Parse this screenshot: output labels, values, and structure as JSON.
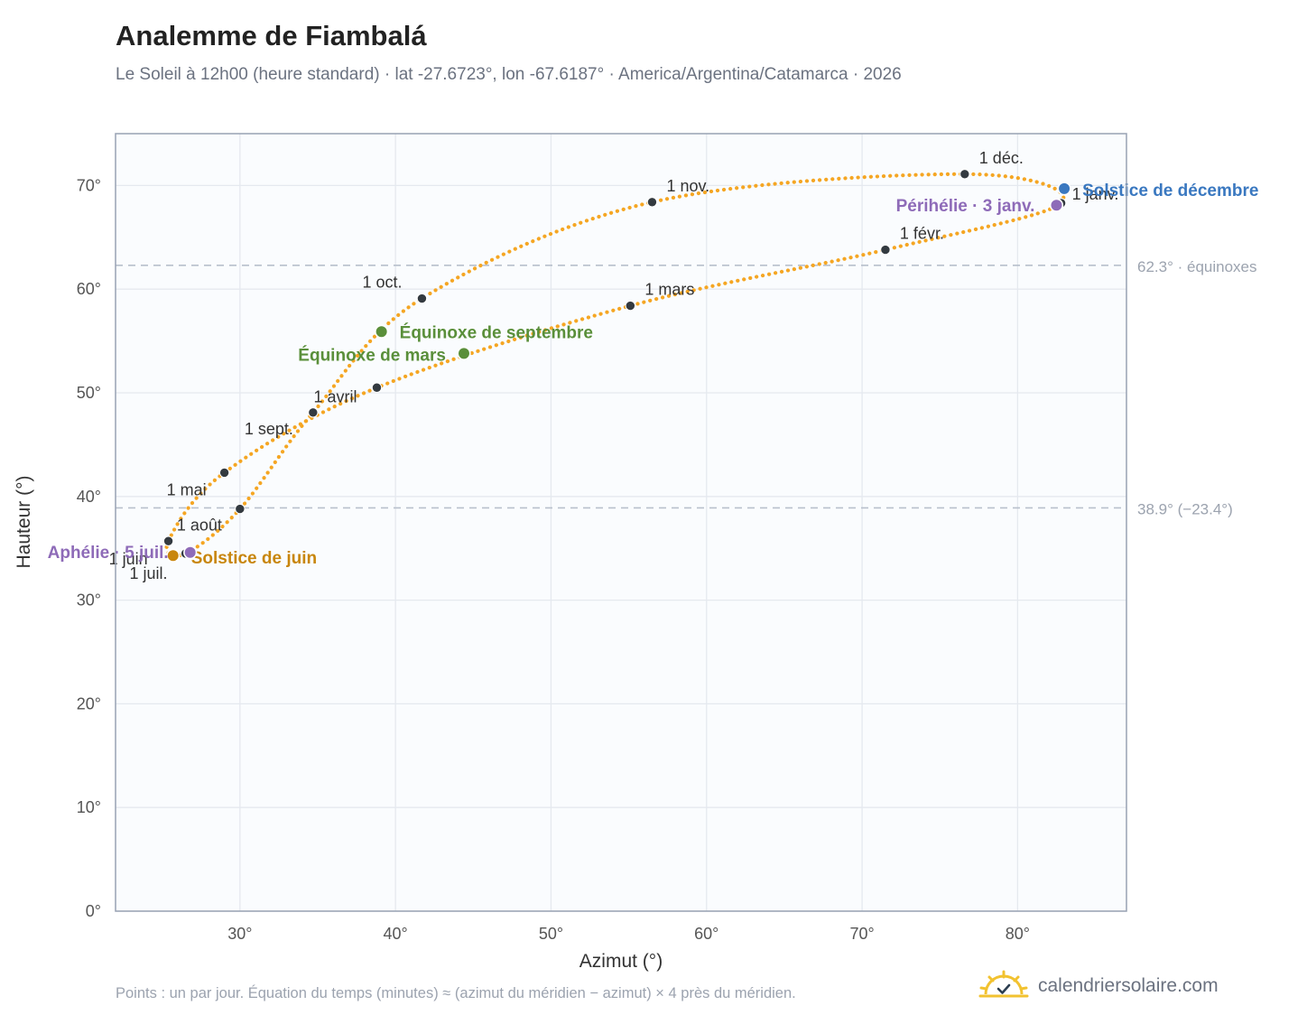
{
  "page": {
    "title": "Analemme de Fiambalá",
    "subtitle": "Le Soleil à 12h00 (heure standard) · lat -27.6723°, lon -67.6187° · America/Argentina/Catamarca · 2026",
    "footer": "Points : un par jour. Équation du temps (minutes) ≈ (azimut du méridien − azimut) × 4 près du méridien.",
    "brand": "calendriersolaire.com",
    "brand_icon": "sun-icon"
  },
  "colors": {
    "curve": "#f5a623",
    "month_point": "#333a40",
    "equinox": "#5a8f3a",
    "june_solstice": "#c8860d",
    "december_solstice": "#3a78c0",
    "apsis": "#8e6bb8",
    "reference_line": "#b8c0cc",
    "plot_background": "#fafcfe",
    "plot_border": "#98a2b3",
    "grid": "#e5e9ef"
  },
  "chart_data": {
    "type": "scatter",
    "xlabel": "Azimut (°)",
    "ylabel": "Hauteur (°)",
    "xlim": [
      22,
      87
    ],
    "ylim": [
      0,
      75
    ],
    "x_ticks": [
      {
        "value": 30,
        "label": "30°"
      },
      {
        "value": 40,
        "label": "40°"
      },
      {
        "value": 50,
        "label": "50°"
      },
      {
        "value": 60,
        "label": "60°"
      },
      {
        "value": 70,
        "label": "70°"
      },
      {
        "value": 80,
        "label": "80°"
      }
    ],
    "y_ticks": [
      {
        "value": 0,
        "label": "0°"
      },
      {
        "value": 10,
        "label": "10°"
      },
      {
        "value": 20,
        "label": "20°"
      },
      {
        "value": 30,
        "label": "30°"
      },
      {
        "value": 40,
        "label": "40°"
      },
      {
        "value": 50,
        "label": "50°"
      },
      {
        "value": 60,
        "label": "60°"
      },
      {
        "value": 70,
        "label": "70°"
      }
    ],
    "grid": true,
    "reference_lines": [
      {
        "y": 62.3,
        "label": "62.3° · équinoxes"
      },
      {
        "y": 38.9,
        "label": "38.9° (−23.4°)"
      }
    ],
    "month_points": [
      {
        "label": "1 janv.",
        "x": 82.8,
        "y": 68.3
      },
      {
        "label": "1 févr.",
        "x": 71.5,
        "y": 63.8
      },
      {
        "label": "1 mars",
        "x": 55.1,
        "y": 58.4
      },
      {
        "label": "1 avril",
        "x": 38.8,
        "y": 50.5
      },
      {
        "label": "1 mai",
        "x": 29.0,
        "y": 42.3
      },
      {
        "label": "1 juin",
        "x": 25.4,
        "y": 35.7
      },
      {
        "label": "1 juil.",
        "x": 26.5,
        "y": 34.5
      },
      {
        "label": "1 août",
        "x": 30.0,
        "y": 38.8
      },
      {
        "label": "1 sept.",
        "x": 34.7,
        "y": 48.1
      },
      {
        "label": "1 oct.",
        "x": 41.7,
        "y": 59.1
      },
      {
        "label": "1 nov.",
        "x": 56.5,
        "y": 68.4
      },
      {
        "label": "1 déc.",
        "x": 76.6,
        "y": 71.1
      }
    ],
    "events": [
      {
        "label": "Solstice de décembre",
        "x": 83.0,
        "y": 69.7,
        "kind": "december_solstice"
      },
      {
        "label": "Périhélie · 3 janv.",
        "x": 82.5,
        "y": 68.1,
        "kind": "apsis"
      },
      {
        "label": "Équinoxe de mars",
        "x": 44.4,
        "y": 53.8,
        "kind": "equinox"
      },
      {
        "label": "Équinoxe de septembre",
        "x": 39.1,
        "y": 55.9,
        "kind": "equinox"
      },
      {
        "label": "Solstice de juin",
        "x": 25.7,
        "y": 34.3,
        "kind": "june_solstice"
      },
      {
        "label": "Aphélie · 5 juil.",
        "x": 26.8,
        "y": 34.6,
        "kind": "apsis"
      }
    ]
  }
}
